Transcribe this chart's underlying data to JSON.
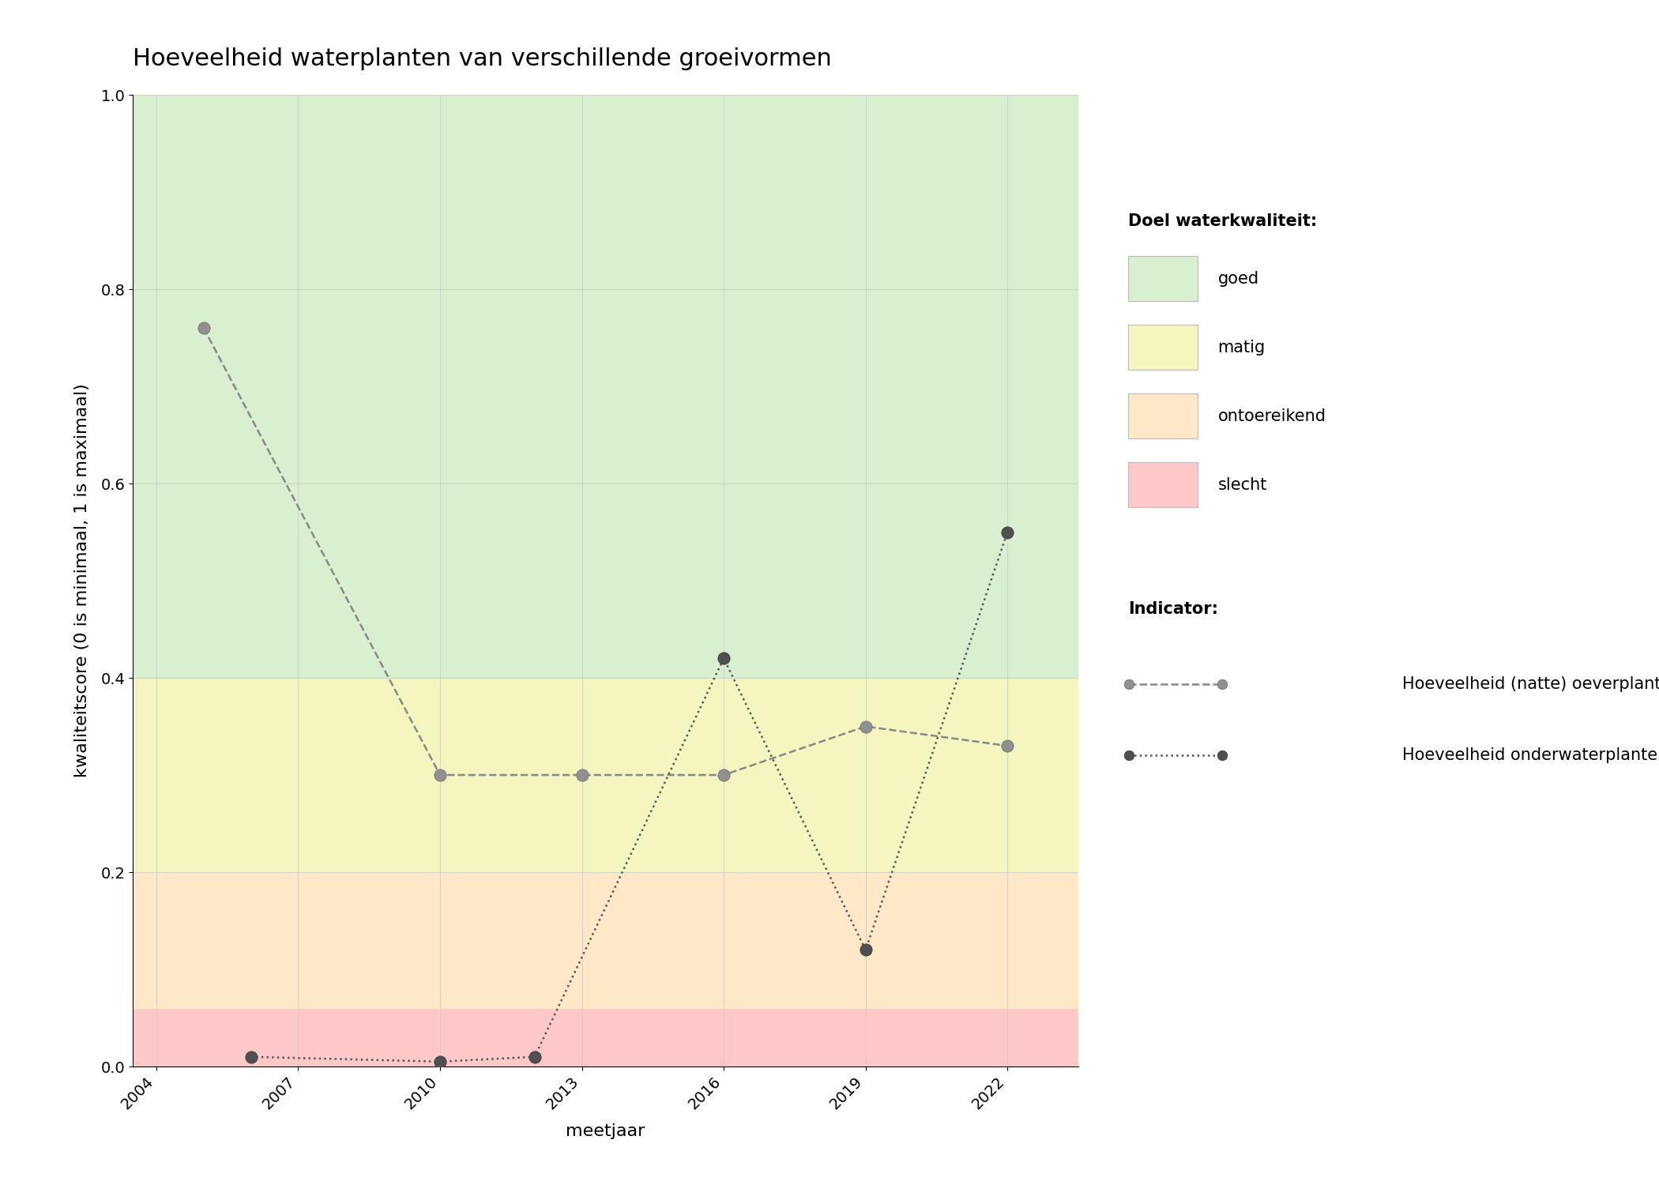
{
  "title": "Hoeveelheid waterplanten van verschillende groeivormen",
  "xlabel": "meetjaar",
  "ylabel": "kwaliteitscore (0 is minimaal, 1 is maximaal)",
  "xlim": [
    2003.5,
    2023.5
  ],
  "ylim": [
    0.0,
    1.0
  ],
  "xticks": [
    2004,
    2007,
    2010,
    2013,
    2016,
    2019,
    2022
  ],
  "bg_bands": [
    {
      "ymin": 0.0,
      "ymax": 0.06,
      "color": "#ffc8c8",
      "label": "slecht"
    },
    {
      "ymin": 0.06,
      "ymax": 0.2,
      "color": "#ffe8c8",
      "label": "ontoereikend"
    },
    {
      "ymin": 0.2,
      "ymax": 0.4,
      "color": "#f5f5c0",
      "label": "matig"
    },
    {
      "ymin": 0.4,
      "ymax": 1.0,
      "color": "#d8f0d0",
      "label": "goed"
    }
  ],
  "oeverplanten": {
    "x": [
      2005,
      2010,
      2013,
      2016,
      2019,
      2022
    ],
    "y": [
      0.76,
      0.3,
      0.3,
      0.3,
      0.35,
      0.33
    ],
    "line_color": "#888888",
    "marker_face": "#909090",
    "marker_edge": "#666666",
    "linestyle": "dashed",
    "linewidth": 1.8,
    "markersize": 11,
    "label": "Hoeveelheid (natte) oeverplanten"
  },
  "onderwaterplanten": {
    "x": [
      2006,
      2010,
      2012,
      2016,
      2019,
      2022
    ],
    "y": [
      0.01,
      0.005,
      0.01,
      0.42,
      0.12,
      0.55
    ],
    "line_color": "#555555",
    "marker_face": "#505050",
    "marker_edge": "#303030",
    "linestyle": "dotted",
    "linewidth": 1.8,
    "markersize": 11,
    "label": "Hoeveelheid onderwaterplanten"
  },
  "legend_quality_title": "Doel waterkwaliteit:",
  "legend_indicator_title": "Indicator:",
  "legend_quality_items": [
    {
      "label": "goed",
      "color": "#d8f0d0"
    },
    {
      "label": "matig",
      "color": "#f5f5c0"
    },
    {
      "label": "ontoereikend",
      "color": "#ffe8c8"
    },
    {
      "label": "slecht",
      "color": "#ffc8c8"
    }
  ],
  "grid_color": "#cccccc",
  "grid_alpha": 0.8,
  "background_color": "#ffffff",
  "title_fontsize": 22,
  "axis_label_fontsize": 16,
  "tick_fontsize": 14,
  "legend_fontsize": 15
}
